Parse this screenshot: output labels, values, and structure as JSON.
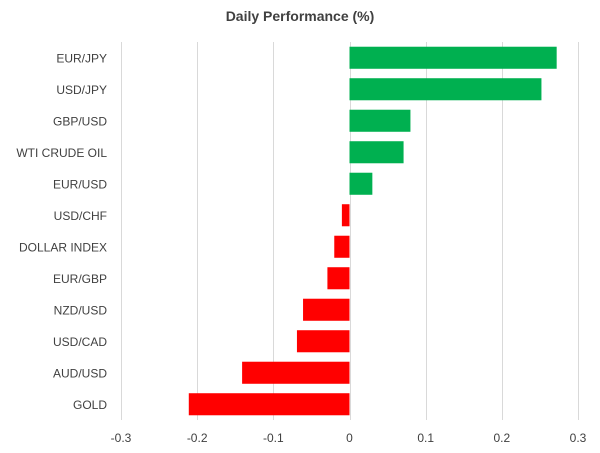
{
  "chart_data": {
    "type": "bar",
    "orientation": "horizontal",
    "title": "Daily Performance (%)",
    "categories": [
      "EUR/JPY",
      "USD/JPY",
      "GBP/USD",
      "WTI CRUDE OIL",
      "EUR/USD",
      "USD/CHF",
      "DOLLAR INDEX",
      "EUR/GBP",
      "NZD/USD",
      "USD/CAD",
      "AUD/USD",
      "GOLD"
    ],
    "values": [
      0.272,
      0.252,
      0.08,
      0.071,
      0.03,
      -0.01,
      -0.02,
      -0.029,
      -0.061,
      -0.069,
      -0.141,
      -0.211
    ],
    "xlim": [
      -0.3,
      0.3
    ],
    "xticks": [
      "-0.3",
      "-0.2",
      "-0.1",
      "0",
      "0.1",
      "0.2",
      "0.3"
    ],
    "xlabel": "",
    "ylabel": "",
    "grid": "vertical",
    "legend": "none",
    "colors": {
      "positive": "#00b050",
      "negative": "#ff0000",
      "grid": "#d9d9d9",
      "text": "#404040"
    }
  }
}
